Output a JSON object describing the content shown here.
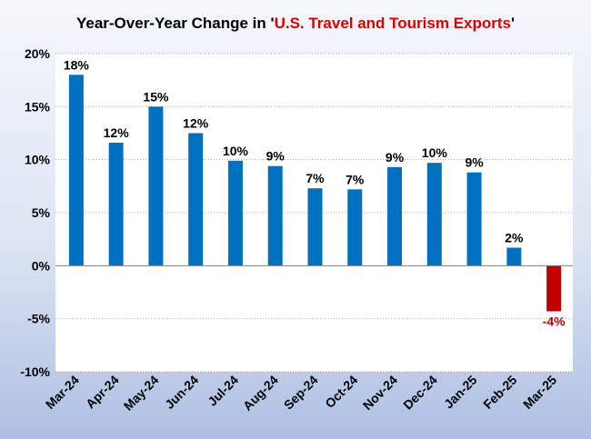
{
  "chart_data": {
    "type": "bar",
    "title_prefix": "Year-Over-Year Change in '",
    "title_highlight": "U.S. Travel and Tourism Exports",
    "title_suffix": "'",
    "categories": [
      "Mar-24",
      "Apr-24",
      "May-24",
      "Jun-24",
      "Jul-24",
      "Aug-24",
      "Sep-24",
      "Oct-24",
      "Nov-24",
      "Dec-24",
      "Jan-25",
      "Feb-25",
      "Mar-25"
    ],
    "values": [
      18.0,
      11.6,
      15.0,
      12.5,
      9.9,
      9.4,
      7.3,
      7.2,
      9.3,
      9.7,
      8.8,
      1.7,
      -4.3
    ],
    "data_labels": [
      "18%",
      "12%",
      "15%",
      "12%",
      "10%",
      "9%",
      "7%",
      "7%",
      "9%",
      "10%",
      "9%",
      "2%",
      "-4%"
    ],
    "ylim": [
      -10,
      20
    ],
    "yticks": [
      20,
      15,
      10,
      5,
      0,
      -5,
      -10
    ],
    "ytick_labels": [
      "20%",
      "15%",
      "10%",
      "5%",
      "0%",
      "-5%",
      "-10%"
    ],
    "xlabel": "",
    "ylabel": "",
    "grid": true,
    "colors": {
      "positive": "#0070c0",
      "negative": "#c00000",
      "title_highlight": "#e00000",
      "negative_label": "#c00000",
      "positive_label": "#000000",
      "gridline": "#a6a6a6"
    }
  }
}
